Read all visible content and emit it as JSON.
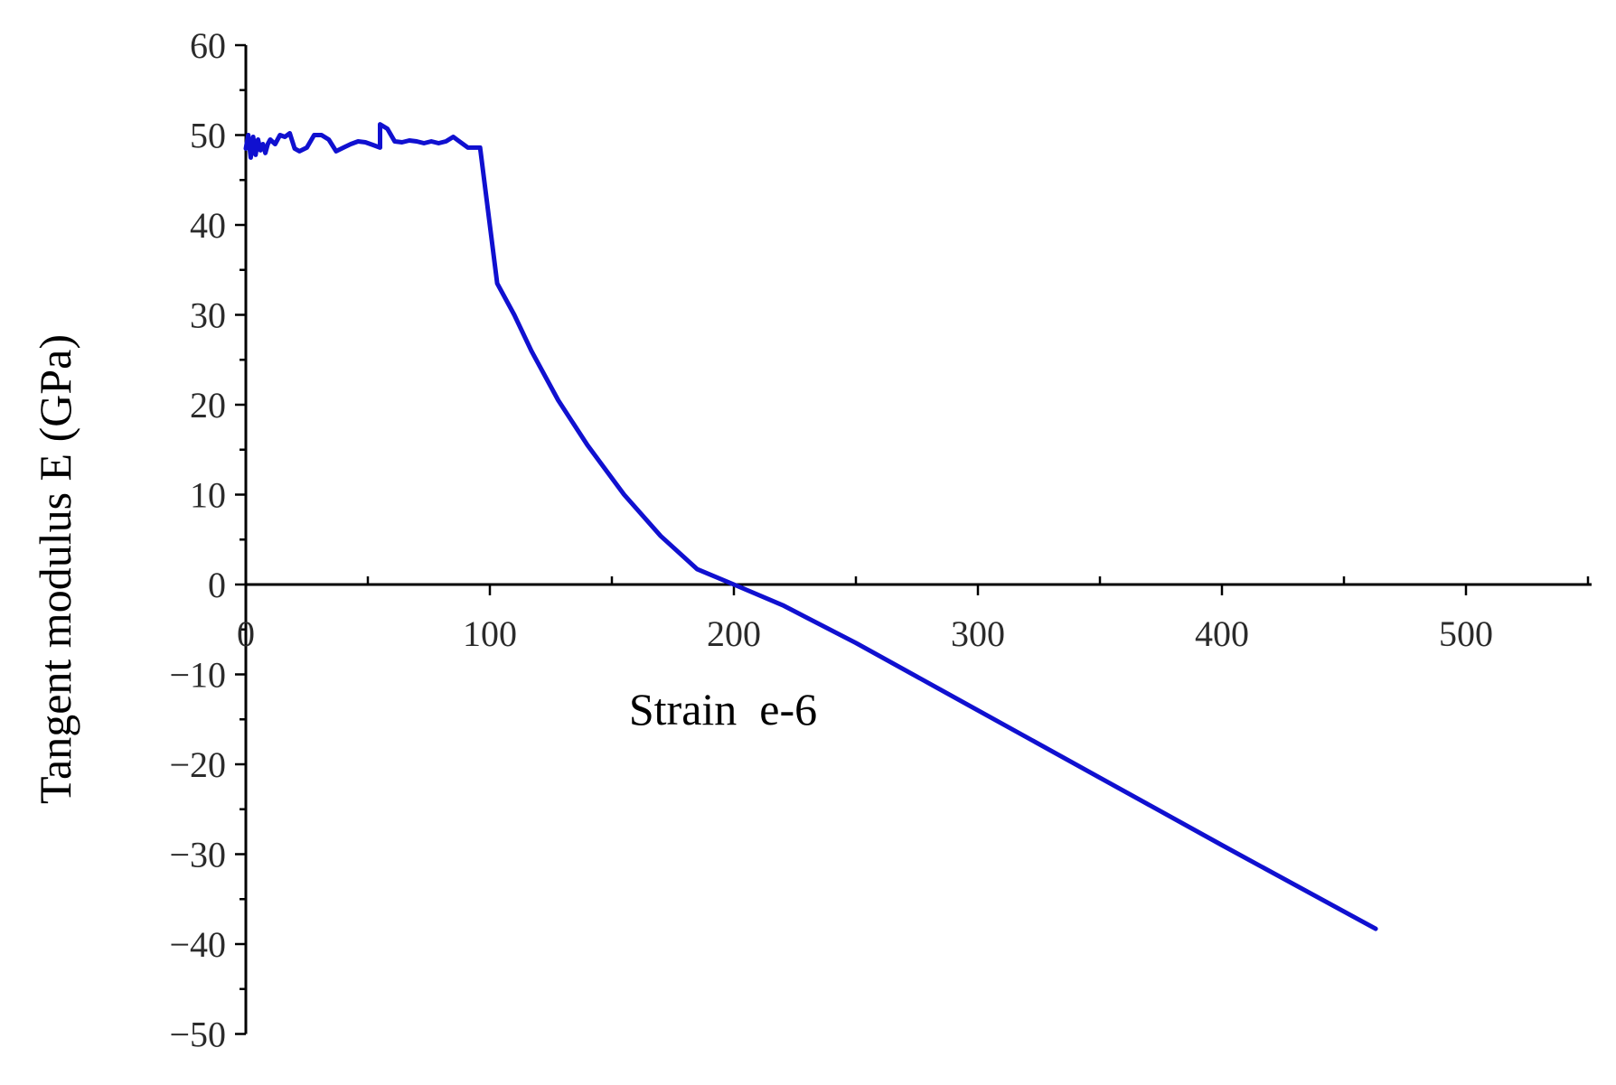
{
  "chart_data": {
    "type": "line",
    "title": "",
    "xlabel": "Strain  e-6",
    "ylabel": "Tangent modulus E (GPa)",
    "xlim": [
      0,
      550
    ],
    "ylim": [
      -50,
      60
    ],
    "x_ticks": [
      0,
      100,
      200,
      300,
      400,
      500
    ],
    "y_ticks": [
      -50,
      -40,
      -30,
      -20,
      -10,
      0,
      10,
      20,
      30,
      40,
      50,
      60
    ],
    "x_tick_labels": [
      "0",
      "100",
      "200",
      "300",
      "400",
      "500"
    ],
    "y_tick_labels": [
      "−50",
      "−40",
      "−30",
      "−20",
      "−10",
      "0",
      "10",
      "20",
      "30",
      "40",
      "50",
      "60"
    ],
    "grid": false,
    "legend": "none",
    "series": [
      {
        "color": "#1010d0",
        "x": [
          0,
          1,
          2,
          3,
          4,
          5,
          6,
          7,
          8,
          9,
          10,
          12,
          14,
          16,
          18,
          20,
          22,
          25,
          28,
          31,
          34,
          37,
          40,
          43,
          46,
          49,
          52,
          55,
          55,
          58,
          61,
          64,
          67,
          70,
          73,
          76,
          79,
          82,
          85,
          88,
          91,
          94,
          96,
          103,
          110,
          117,
          128,
          140,
          155,
          170,
          185,
          200,
          220,
          250,
          300,
          350,
          400,
          463
        ],
        "y": [
          48.5,
          50,
          47.5,
          49.8,
          47.8,
          49.5,
          48.3,
          49,
          48,
          49,
          49.5,
          49,
          50,
          49.8,
          50.2,
          48.5,
          48.2,
          48.6,
          50,
          50,
          49.5,
          48.2,
          48.6,
          49,
          49.3,
          49.2,
          48.9,
          48.6,
          51.2,
          50.7,
          49.3,
          49.2,
          49.4,
          49.3,
          49.1,
          49.3,
          49.1,
          49.3,
          49.8,
          49.2,
          48.6,
          48.6,
          48.6,
          33.5,
          30,
          26,
          20.5,
          15.5,
          10,
          5.4,
          1.7,
          0,
          -2.3,
          -6.5,
          -14,
          -21.5,
          -29,
          -38.3
        ]
      }
    ]
  }
}
